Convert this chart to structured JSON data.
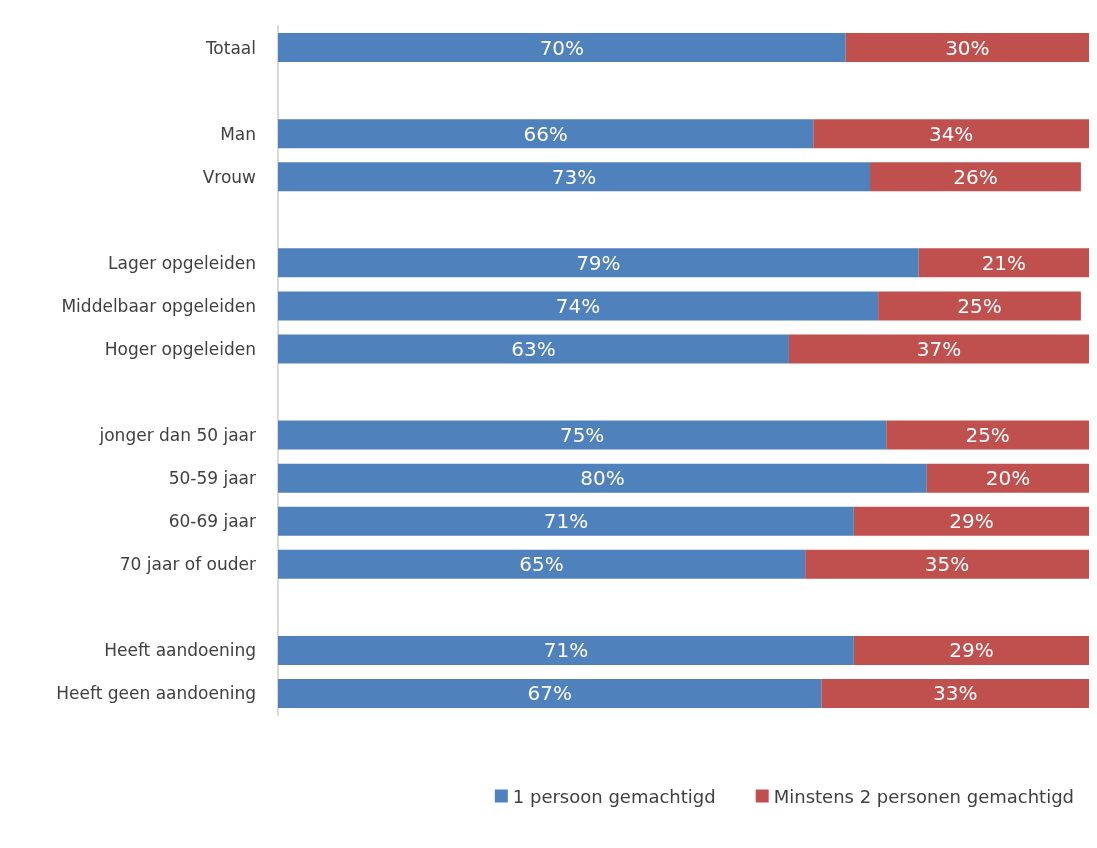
{
  "chart_data": {
    "type": "bar",
    "orientation": "horizontal",
    "stacked": true,
    "categories": [
      "Totaal",
      null,
      "Man",
      "Vrouw",
      null,
      "Lager opgeleiden",
      "Middelbaar opgeleiden",
      "Hoger opgeleiden",
      null,
      "jonger dan 50 jaar",
      "50-59 jaar",
      "60-69 jaar",
      "70 jaar of ouder",
      null,
      "Heeft aandoening",
      "Heeft geen aandoening"
    ],
    "series": [
      {
        "name": "1 persoon gemachtigd",
        "color": "#4f81bd",
        "values": [
          70,
          null,
          66,
          73,
          null,
          79,
          74,
          63,
          null,
          75,
          80,
          71,
          65,
          null,
          71,
          67
        ],
        "value_labels": [
          "70%",
          null,
          "66%",
          "73%",
          null,
          "79%",
          "74%",
          "63%",
          null,
          "75%",
          "80%",
          "71%",
          "65%",
          null,
          "71%",
          "67%"
        ]
      },
      {
        "name": "Minstens 2 personen gemachtigd",
        "color": "#c0504d",
        "values": [
          30,
          null,
          34,
          26,
          null,
          21,
          25,
          37,
          null,
          25,
          20,
          29,
          35,
          null,
          29,
          33
        ],
        "value_labels": [
          "30%",
          null,
          "34%",
          "26%",
          null,
          "21%",
          "25%",
          "37%",
          null,
          "25%",
          "20%",
          "29%",
          "35%",
          null,
          "29%",
          "33%"
        ]
      }
    ],
    "tick_labels": "y",
    "legend": "bottom right"
  }
}
